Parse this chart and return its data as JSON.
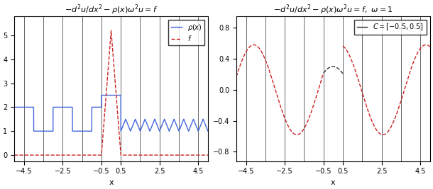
{
  "left_title": "$-d^2u/dx^2-\\rho(x)\\omega^2u=f$",
  "right_title": "$-d^2u/dx^2-\\rho(x)\\omega^2u=f,\\ \\omega = 1$",
  "xlabel": "x",
  "xlim": [
    -5.0,
    5.0
  ],
  "left_ylim": [
    -0.25,
    5.8
  ],
  "right_ylim": [
    -0.92,
    0.95
  ],
  "xticks": [
    -4.5,
    -2.5,
    -0.5,
    0.5,
    2.5,
    4.5
  ],
  "left_yticks": [
    0,
    1,
    2,
    3,
    4,
    5
  ],
  "right_yticks": [
    -0.8,
    -0.4,
    0,
    0.4,
    0.8
  ],
  "vlines": [
    -4.5,
    -3.5,
    -2.5,
    -1.5,
    -0.5,
    0.5,
    1.5,
    2.5,
    3.5,
    4.5
  ],
  "rho_color": "#4466dd",
  "f_color": "#cc2222",
  "sol_color": "#cc2222",
  "inner_color": "#333333",
  "vline_color": "#666666",
  "background": "#ffffff",
  "A_out": 0.58,
  "phi_out": 2.57,
  "k_out": 1.4142135623730951,
  "A_in": 0.3,
  "k_in": 1.5811388300841898,
  "figsize": [
    6.1,
    2.67
  ],
  "dpi": 100
}
